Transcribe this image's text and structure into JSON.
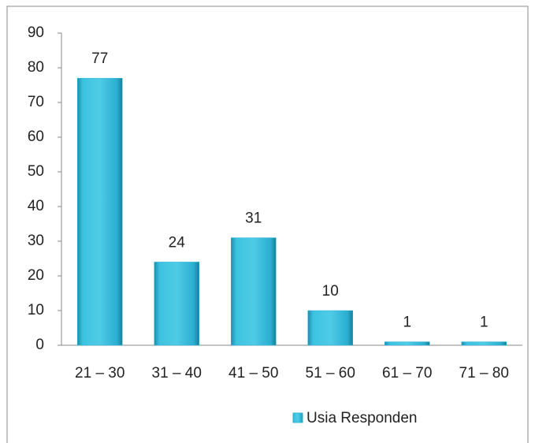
{
  "chart_data": {
    "type": "bar",
    "categories": [
      "21 – 30",
      "31 – 40",
      "41 – 50",
      "51 – 60",
      "61 – 70",
      "71 – 80"
    ],
    "series": [
      {
        "name": "Usia Responden",
        "color": "#2fb6d6",
        "values": [
          77,
          24,
          31,
          10,
          1,
          1
        ]
      }
    ],
    "ylim": [
      0,
      90
    ],
    "yticks": [
      0,
      10,
      20,
      30,
      40,
      50,
      60,
      70,
      80,
      90
    ],
    "grid": false,
    "legend": "bottom"
  }
}
